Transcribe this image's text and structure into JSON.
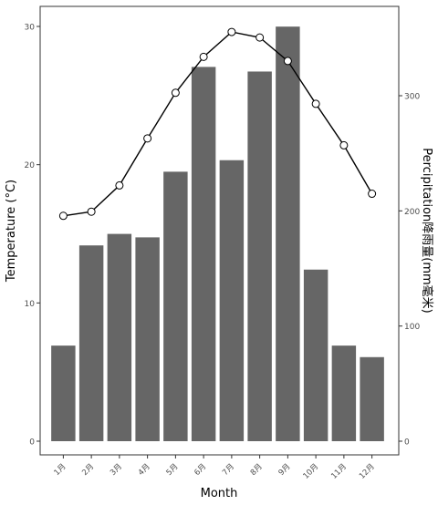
{
  "chart_data": {
    "type": "bar+line",
    "categories": [
      "1月",
      "2月",
      "3月",
      "4月",
      "5月",
      "6月",
      "7月",
      "8月",
      "9月",
      "10月",
      "11月",
      "12月"
    ],
    "series": [
      {
        "kind": "bar",
        "axis": "right",
        "values": [
          83,
          170,
          180,
          177,
          234,
          325,
          244,
          321,
          360,
          149,
          83,
          73
        ]
      },
      {
        "kind": "line",
        "axis": "left",
        "values": [
          16.3,
          16.6,
          18.5,
          21.9,
          25.2,
          27.8,
          29.6,
          29.2,
          27.5,
          24.4,
          21.4,
          17.9
        ]
      }
    ],
    "xlabel": "Month",
    "ylabel": "Temperature (°C)",
    "y2label": "Percipitation降雨量(mm毫米)",
    "ylim": [
      0,
      30
    ],
    "y2lim": [
      0,
      360
    ],
    "yticks": [
      0,
      10,
      20,
      30
    ],
    "y2ticks": [
      0,
      100,
      200,
      300
    ],
    "grid": false,
    "colors": {
      "bar": "#666666",
      "line": "#000000",
      "marker_fill": "#ffffff",
      "marker_stroke": "#000000",
      "axis": "#333333"
    }
  }
}
